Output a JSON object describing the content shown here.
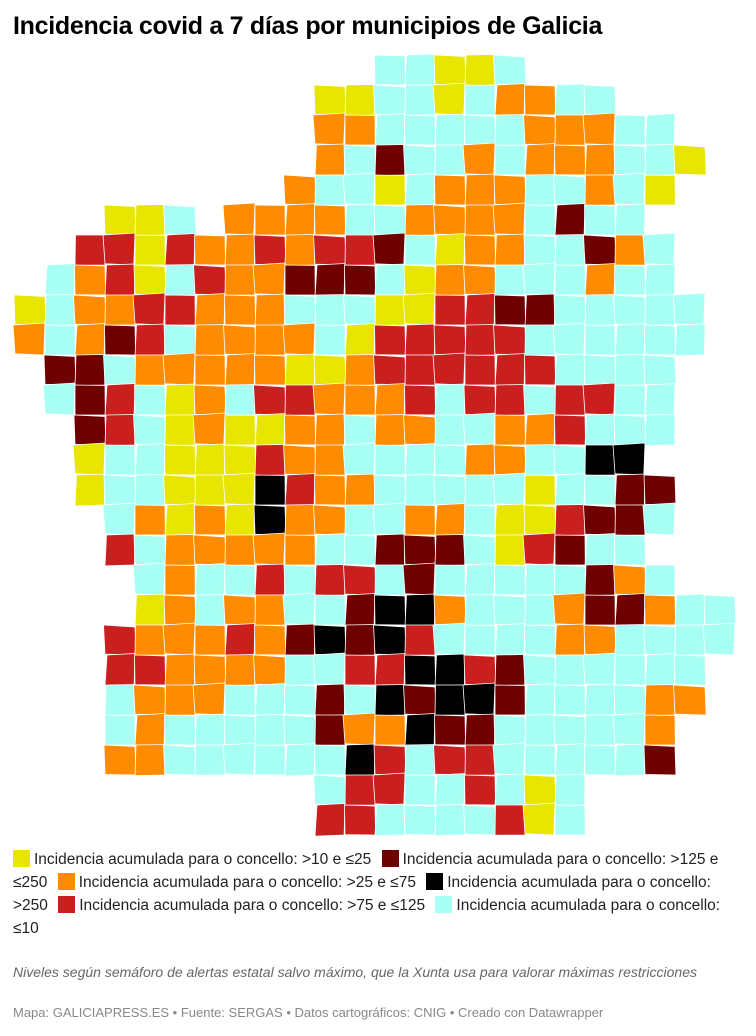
{
  "title": "Incidencia covid a 7 días por municipios de Galicia",
  "legend": [
    {
      "label": "Incidencia acumulada para o concello: >10 e ≤25",
      "color": "#e8e500"
    },
    {
      "label": "Incidencia acumulada para o concello: >125 e ≤250",
      "color": "#6e0000"
    },
    {
      "label": "Incidencia acumulada para o concello: >25 e ≤75",
      "color": "#ff8c00"
    },
    {
      "label": "Incidencia acumulada para o concello: >250",
      "color": "#000000"
    },
    {
      "label": "Incidencia acumulada para o concello: >75 e ≤125",
      "color": "#c91f1f"
    },
    {
      "label": "Incidencia acumulada para o concello: ≤10",
      "color": "#a8fff3"
    }
  ],
  "note": "Niveles según semáforo de alertas estatal salvo máximo, que la Xunta usa para valorar máximas restricciones",
  "source": "Mapa: GALICIAPRESS.ES • Fuente: SERGAS • Datos cartográficos: CNIG • Creado con Datawrapper"
}
